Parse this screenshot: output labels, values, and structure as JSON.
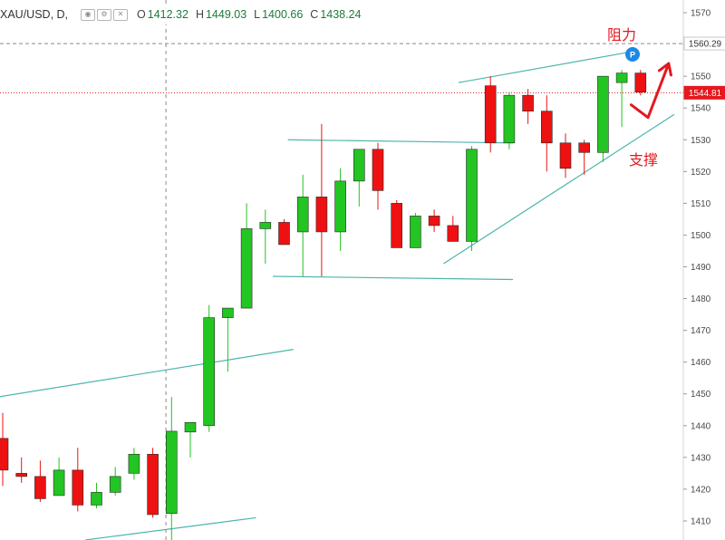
{
  "legend": {
    "symbol": "XAU/USD, D,",
    "open_label": "O",
    "open": "1412.32",
    "high_label": "H",
    "high": "1449.03",
    "low_label": "L",
    "low": "1400.66",
    "close_label": "C",
    "close": "1438.24",
    "controls": [
      "eye-icon",
      "settings-icon",
      "close-icon"
    ]
  },
  "annotations": {
    "resistance": "阻力",
    "support": "支撑",
    "marker": "P"
  },
  "colors": {
    "up": "#22c521",
    "down": "#ee1111",
    "trendline": "#4db6ac",
    "current_price": "#e4181e",
    "marker": "#1e88e5",
    "axis_text": "#4a4a4a"
  },
  "chart_data": {
    "type": "candlestick",
    "symbol": "XAU/USD",
    "interval": "D",
    "ylim": [
      1404,
      1574
    ],
    "y_ticks": [
      1410,
      1420,
      1430,
      1440,
      1450,
      1460,
      1470,
      1480,
      1490,
      1500,
      1510,
      1520,
      1530,
      1540,
      1550,
      1560,
      1570
    ],
    "axis_position": "right",
    "grid": false,
    "price_labels": [
      {
        "value": 1560.29,
        "text": "1560.29",
        "style": "dashed-gray"
      },
      {
        "value": 1544.81,
        "text": "1544.81",
        "style": "current-red"
      }
    ],
    "candles": [
      {
        "o": 1436,
        "h": 1444,
        "l": 1421,
        "c": 1426
      },
      {
        "o": 1425,
        "h": 1430,
        "l": 1422,
        "c": 1424
      },
      {
        "o": 1424,
        "h": 1429,
        "l": 1416,
        "c": 1417
      },
      {
        "o": 1418,
        "h": 1430,
        "l": 1418,
        "c": 1426
      },
      {
        "o": 1426,
        "h": 1433,
        "l": 1413,
        "c": 1415
      },
      {
        "o": 1415,
        "h": 1422,
        "l": 1414,
        "c": 1419
      },
      {
        "o": 1419,
        "h": 1427,
        "l": 1418,
        "c": 1424
      },
      {
        "o": 1425,
        "h": 1433,
        "l": 1423,
        "c": 1431
      },
      {
        "o": 1431,
        "h": 1433,
        "l": 1411,
        "c": 1412
      },
      {
        "o": 1412.32,
        "h": 1449.03,
        "l": 1400.66,
        "c": 1438.24
      },
      {
        "o": 1438,
        "h": 1441,
        "l": 1430,
        "c": 1441
      },
      {
        "o": 1440,
        "h": 1478,
        "l": 1438,
        "c": 1474
      },
      {
        "o": 1474,
        "h": 1477,
        "l": 1457,
        "c": 1477
      },
      {
        "o": 1477,
        "h": 1510,
        "l": 1477,
        "c": 1502
      },
      {
        "o": 1502,
        "h": 1508,
        "l": 1491,
        "c": 1504
      },
      {
        "o": 1504,
        "h": 1505,
        "l": 1497,
        "c": 1497
      },
      {
        "o": 1501,
        "h": 1519,
        "l": 1487,
        "c": 1512
      },
      {
        "o": 1512,
        "h": 1535,
        "l": 1487,
        "c": 1501
      },
      {
        "o": 1501,
        "h": 1521,
        "l": 1495,
        "c": 1517
      },
      {
        "o": 1517,
        "h": 1527,
        "l": 1509,
        "c": 1527
      },
      {
        "o": 1527,
        "h": 1529,
        "l": 1508,
        "c": 1514
      },
      {
        "o": 1510,
        "h": 1511,
        "l": 1496,
        "c": 1496
      },
      {
        "o": 1496,
        "h": 1507,
        "l": 1496,
        "c": 1506
      },
      {
        "o": 1506,
        "h": 1508,
        "l": 1501,
        "c": 1503
      },
      {
        "o": 1503,
        "h": 1506,
        "l": 1498,
        "c": 1498
      },
      {
        "o": 1498,
        "h": 1528,
        "l": 1495,
        "c": 1527
      },
      {
        "o": 1547,
        "h": 1550,
        "l": 1526,
        "c": 1529
      },
      {
        "o": 1529,
        "h": 1545,
        "l": 1527,
        "c": 1544
      },
      {
        "o": 1544,
        "h": 1546,
        "l": 1535,
        "c": 1539
      },
      {
        "o": 1539,
        "h": 1544,
        "l": 1520,
        "c": 1529
      },
      {
        "o": 1529,
        "h": 1532,
        "l": 1518,
        "c": 1521
      },
      {
        "o": 1529,
        "h": 1530,
        "l": 1519,
        "c": 1526
      },
      {
        "o": 1526,
        "h": 1550,
        "l": 1523,
        "c": 1550
      },
      {
        "o": 1548,
        "h": 1552,
        "l": 1534,
        "c": 1551
      },
      {
        "o": 1551,
        "h": 1552,
        "l": 1544,
        "c": 1545
      }
    ],
    "trendlines": [
      {
        "name": "resistance",
        "from": {
          "bar": 24.3,
          "price": 1548
        },
        "to": {
          "bar": 33.8,
          "price": 1558
        }
      },
      {
        "name": "support",
        "from": {
          "bar": 23.5,
          "price": 1491
        },
        "to": {
          "bar": 35.8,
          "price": 1538
        }
      },
      {
        "name": "range-top",
        "from": {
          "bar": 15.2,
          "price": 1530
        },
        "to": {
          "bar": 27.2,
          "price": 1529
        }
      },
      {
        "name": "range-bottom",
        "from": {
          "bar": 14.4,
          "price": 1487
        },
        "to": {
          "bar": 27.2,
          "price": 1486
        }
      },
      {
        "name": "lower-channel-top",
        "from": {
          "bar": -0.3,
          "price": 1449
        },
        "to": {
          "bar": 15.5,
          "price": 1464
        }
      },
      {
        "name": "lower-channel-bottom",
        "from": {
          "bar": 4.4,
          "price": 1404
        },
        "to": {
          "bar": 13.5,
          "price": 1411
        }
      }
    ],
    "projection_arrow": {
      "points": [
        {
          "bar": 33.5,
          "price": 1541
        },
        {
          "bar": 34.4,
          "price": 1537
        },
        {
          "bar": 35.5,
          "price": 1554
        }
      ]
    },
    "crosshair_bar": 8.7
  }
}
